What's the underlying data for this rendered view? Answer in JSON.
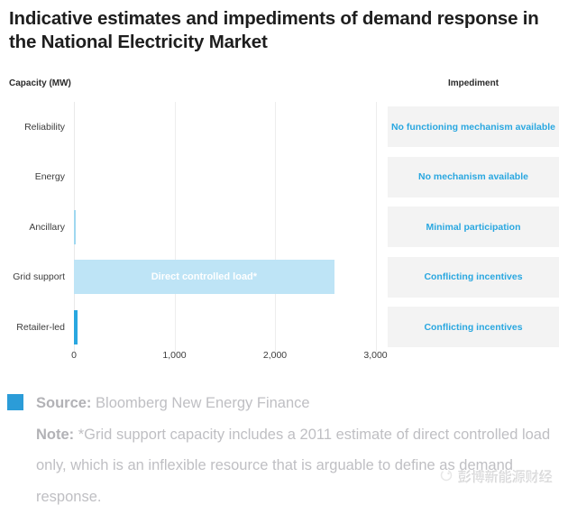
{
  "title": "Indicative estimates and impediments of demand response in the National Electricity Market",
  "chart_data": {
    "type": "bar",
    "orientation": "horizontal",
    "title": "Indicative estimates and impediments of demand response in the National Electricity Market",
    "capacity_header": "Capacity (MW)",
    "impediment_header": "Impediment",
    "categories": [
      "Reliability",
      "Energy",
      "Ancillary",
      "Grid support",
      "Retailer-led"
    ],
    "values": [
      0,
      0,
      20,
      2590,
      40
    ],
    "bar_labels": [
      "",
      "",
      "",
      "Direct controlled load*",
      ""
    ],
    "bar_colors": [
      "",
      "",
      "#9fd8f0",
      "#bee4f6",
      "#29a7e0"
    ],
    "impediments": [
      "No functioning mechanism available",
      "No mechanism available",
      "Minimal participation",
      "Conflicting incentives",
      "Conflicting incentives"
    ],
    "xlabel": "",
    "ylabel": "Capacity (MW)",
    "xlim": [
      0,
      3000
    ],
    "xticks": [
      "0",
      "1,000",
      "2,000",
      "3,000"
    ],
    "xtick_values": [
      0,
      1000,
      2000,
      3000
    ],
    "grid": "vertical-faint",
    "legend_position": "none"
  },
  "footer": {
    "source_label": "Source:",
    "source_text": "Bloomberg New Energy Finance",
    "note_label": "Note:",
    "note_text": "*Grid support capacity includes a 2011 estimate of direct controlled load only, which is an inflexible resource that is arguable to define as demand response."
  },
  "watermark": "彭博新能源财经",
  "colors": {
    "accent_blue": "#29a7e0",
    "light_bar_blue": "#bee4f6",
    "ancillary_bar_blue": "#9fd8f0",
    "legend_square_blue": "#2b9cd8",
    "impediment_box_bg": "#f3f3f3",
    "impediment_text_blue": "#29a7e0",
    "title_color": "#1e1e1e",
    "footer_text_gray": "#bfbfc3"
  }
}
